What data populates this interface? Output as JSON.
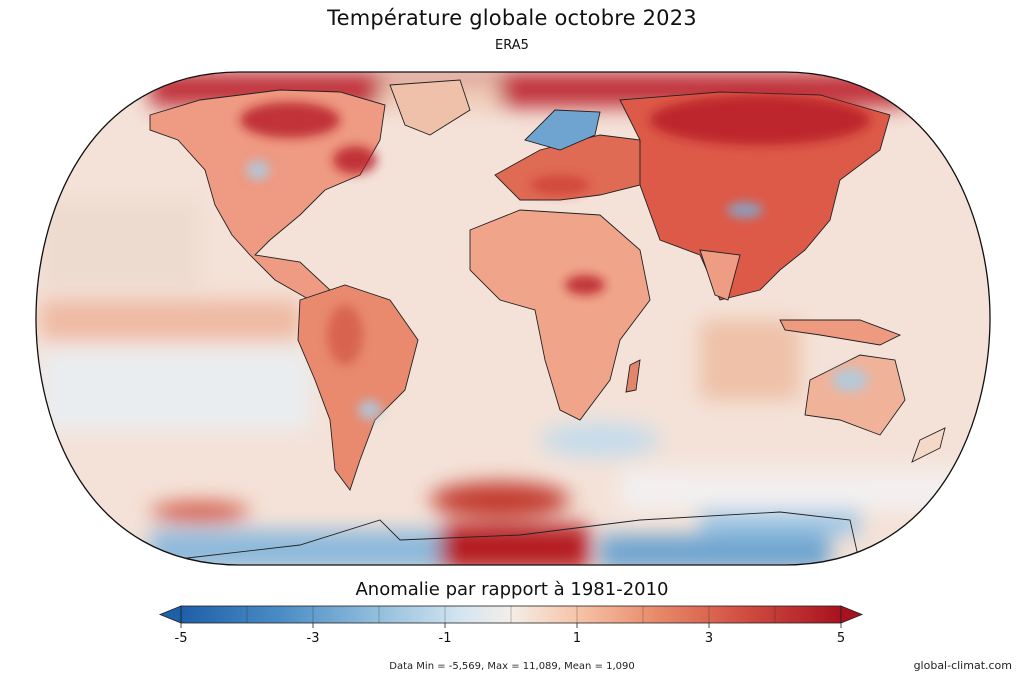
{
  "title": "Température globale octobre 2023",
  "subtitle": "ERA5",
  "colorbar": {
    "title": "Anomalie par rapport à 1981-2010",
    "min": -5,
    "max": 5,
    "ticks": [
      "-5",
      "-3",
      "-1",
      "1",
      "3",
      "5"
    ],
    "tick_values": [
      -5,
      -3,
      -1,
      1,
      3,
      5
    ],
    "extend": "both",
    "colors": [
      "#1f5fa8",
      "#4a8cc4",
      "#93bfdd",
      "#d6e6f1",
      "#f4eee8",
      "#f6c4a8",
      "#e88a6a",
      "#cf4b3f",
      "#a8121f"
    ]
  },
  "stats_text": "Data Min = -5,569, Max = 11,089, Mean = 1,090",
  "source_text": "global-climat.com"
}
